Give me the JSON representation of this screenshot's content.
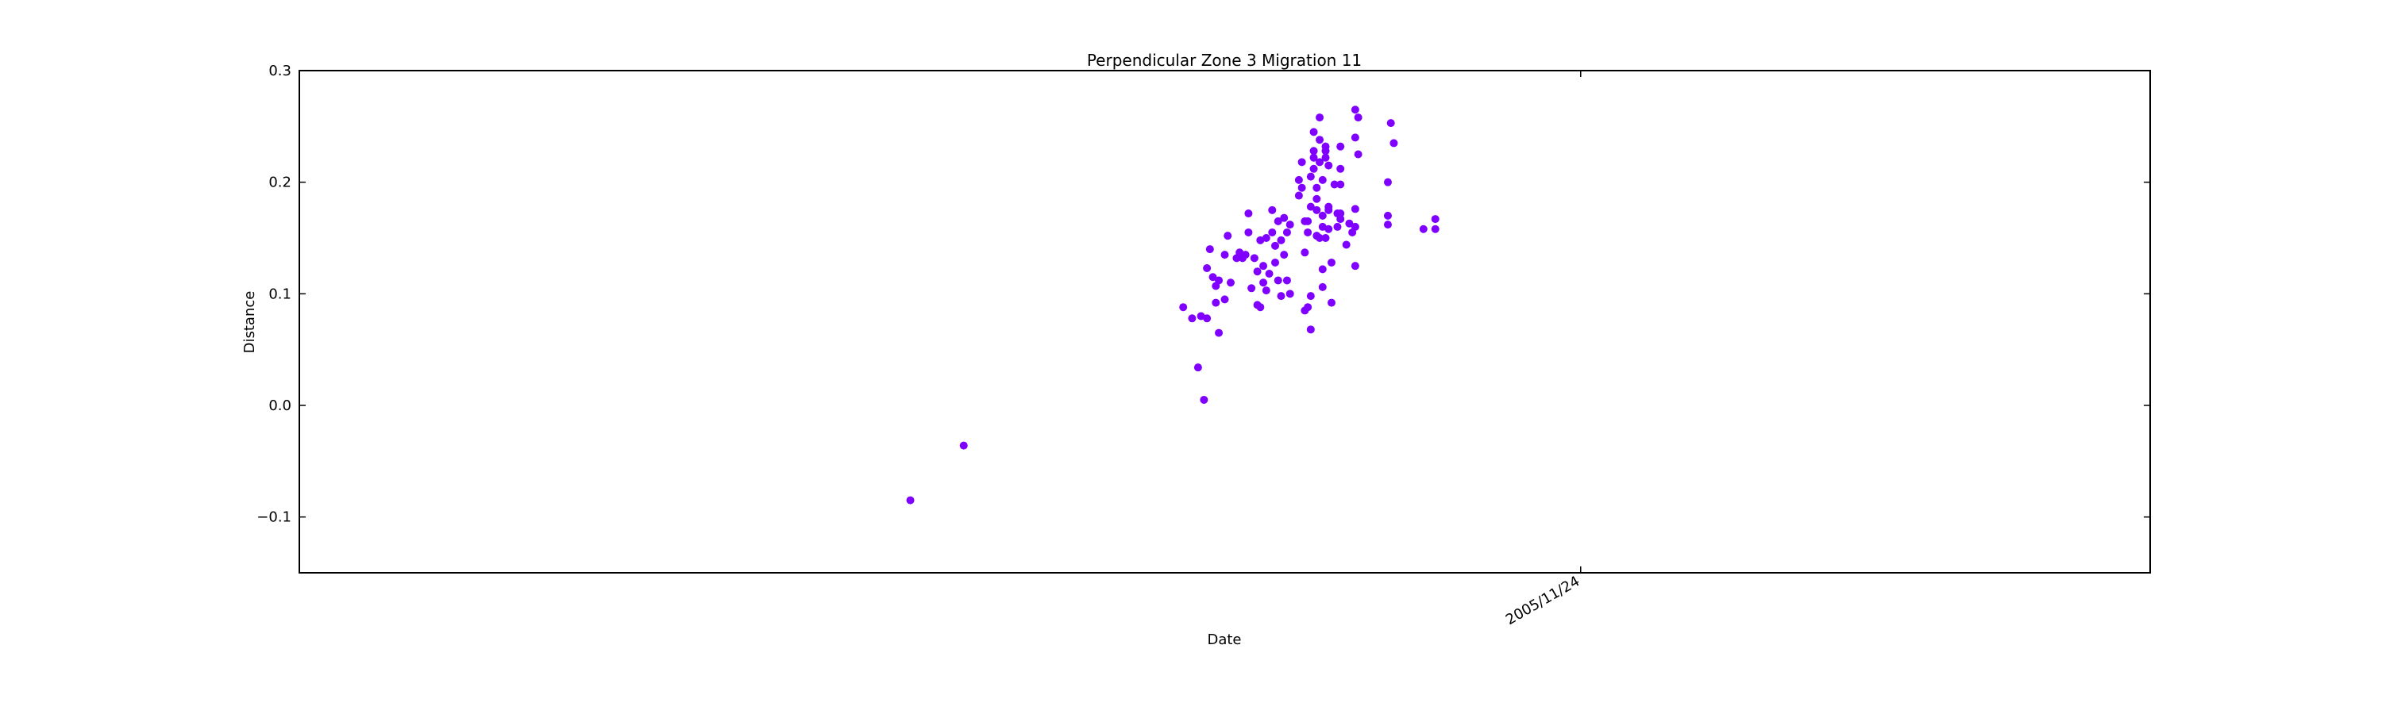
{
  "chart_data": {
    "type": "scatter",
    "title": "Perpendicular Zone 3 Migration 11",
    "xlabel": "Date",
    "ylabel": "Distance",
    "ylim": [
      -0.15,
      0.3
    ],
    "xlim": [
      "2005-11-06",
      "2005-12-02"
    ],
    "x_ticks": [
      {
        "date": "2005-11-24",
        "label": "2005/11/24"
      }
    ],
    "y_ticks": [
      {
        "value": -0.1,
        "label": "−0.1"
      },
      {
        "value": 0.0,
        "label": "0.0"
      },
      {
        "value": 0.1,
        "label": "0.1"
      },
      {
        "value": 0.2,
        "label": "0.2"
      },
      {
        "value": 0.3,
        "label": "0.3"
      }
    ],
    "grid": false,
    "marker_color": "#7f00ff",
    "series": [
      {
        "points": [
          [
            "2005-11-14T14:00",
            -0.085
          ],
          [
            "2005-11-15T08:00",
            -0.036
          ],
          [
            "2005-11-18T10:00",
            0.088
          ],
          [
            "2005-11-18T13:00",
            0.078
          ],
          [
            "2005-11-18T15:00",
            0.034
          ],
          [
            "2005-11-18T16:00",
            0.08
          ],
          [
            "2005-11-18T17:00",
            0.005
          ],
          [
            "2005-11-18T18:00",
            0.123
          ],
          [
            "2005-11-18T18:00",
            0.078
          ],
          [
            "2005-11-18T19:00",
            0.14
          ],
          [
            "2005-11-18T20:00",
            0.115
          ],
          [
            "2005-11-18T21:00",
            0.092
          ],
          [
            "2005-11-18T21:00",
            0.107
          ],
          [
            "2005-11-18T22:00",
            0.065
          ],
          [
            "2005-11-18T22:00",
            0.112
          ],
          [
            "2005-11-19T00:00",
            0.095
          ],
          [
            "2005-11-19T00:00",
            0.135
          ],
          [
            "2005-11-19T01:00",
            0.152
          ],
          [
            "2005-11-19T02:00",
            0.11
          ],
          [
            "2005-11-19T04:00",
            0.132
          ],
          [
            "2005-11-19T05:00",
            0.137
          ],
          [
            "2005-11-19T06:00",
            0.132
          ],
          [
            "2005-11-19T07:00",
            0.135
          ],
          [
            "2005-11-19T08:00",
            0.172
          ],
          [
            "2005-11-19T08:00",
            0.155
          ],
          [
            "2005-11-19T09:00",
            0.105
          ],
          [
            "2005-11-19T10:00",
            0.132
          ],
          [
            "2005-11-19T11:00",
            0.09
          ],
          [
            "2005-11-19T11:00",
            0.12
          ],
          [
            "2005-11-19T12:00",
            0.148
          ],
          [
            "2005-11-19T12:00",
            0.088
          ],
          [
            "2005-11-19T13:00",
            0.125
          ],
          [
            "2005-11-19T13:00",
            0.11
          ],
          [
            "2005-11-19T14:00",
            0.15
          ],
          [
            "2005-11-19T14:00",
            0.103
          ],
          [
            "2005-11-19T15:00",
            0.118
          ],
          [
            "2005-11-19T16:00",
            0.155
          ],
          [
            "2005-11-19T16:00",
            0.175
          ],
          [
            "2005-11-19T17:00",
            0.143
          ],
          [
            "2005-11-19T17:00",
            0.128
          ],
          [
            "2005-11-19T18:00",
            0.165
          ],
          [
            "2005-11-19T18:00",
            0.112
          ],
          [
            "2005-11-19T19:00",
            0.148
          ],
          [
            "2005-11-19T19:00",
            0.098
          ],
          [
            "2005-11-19T20:00",
            0.168
          ],
          [
            "2005-11-19T20:00",
            0.135
          ],
          [
            "2005-11-19T21:00",
            0.155
          ],
          [
            "2005-11-19T21:00",
            0.112
          ],
          [
            "2005-11-19T22:00",
            0.162
          ],
          [
            "2005-11-19T22:00",
            0.1
          ],
          [
            "2005-11-20T01:00",
            0.202
          ],
          [
            "2005-11-20T01:00",
            0.188
          ],
          [
            "2005-11-20T02:00",
            0.218
          ],
          [
            "2005-11-20T02:00",
            0.195
          ],
          [
            "2005-11-20T03:00",
            0.165
          ],
          [
            "2005-11-20T03:00",
            0.137
          ],
          [
            "2005-11-20T03:00",
            0.085
          ],
          [
            "2005-11-20T04:00",
            0.155
          ],
          [
            "2005-11-20T04:00",
            0.088
          ],
          [
            "2005-11-20T04:00",
            0.165
          ],
          [
            "2005-11-20T05:00",
            0.205
          ],
          [
            "2005-11-20T05:00",
            0.178
          ],
          [
            "2005-11-20T05:00",
            0.098
          ],
          [
            "2005-11-20T05:00",
            0.068
          ],
          [
            "2005-11-20T06:00",
            0.245
          ],
          [
            "2005-11-20T06:00",
            0.228
          ],
          [
            "2005-11-20T06:00",
            0.222
          ],
          [
            "2005-11-20T06:00",
            0.212
          ],
          [
            "2005-11-20T07:00",
            0.195
          ],
          [
            "2005-11-20T07:00",
            0.185
          ],
          [
            "2005-11-20T07:00",
            0.175
          ],
          [
            "2005-11-20T07:00",
            0.152
          ],
          [
            "2005-11-20T08:00",
            0.238
          ],
          [
            "2005-11-20T08:00",
            0.258
          ],
          [
            "2005-11-20T08:00",
            0.218
          ],
          [
            "2005-11-20T08:00",
            0.15
          ],
          [
            "2005-11-20T09:00",
            0.202
          ],
          [
            "2005-11-20T09:00",
            0.17
          ],
          [
            "2005-11-20T09:00",
            0.16
          ],
          [
            "2005-11-20T09:00",
            0.122
          ],
          [
            "2005-11-20T09:00",
            0.106
          ],
          [
            "2005-11-20T10:00",
            0.232
          ],
          [
            "2005-11-20T10:00",
            0.228
          ],
          [
            "2005-11-20T10:00",
            0.222
          ],
          [
            "2005-11-20T10:00",
            0.15
          ],
          [
            "2005-11-20T11:00",
            0.215
          ],
          [
            "2005-11-20T11:00",
            0.178
          ],
          [
            "2005-11-20T11:00",
            0.175
          ],
          [
            "2005-11-20T11:00",
            0.158
          ],
          [
            "2005-11-20T12:00",
            0.128
          ],
          [
            "2005-11-20T12:00",
            0.092
          ],
          [
            "2005-11-20T13:00",
            0.198
          ],
          [
            "2005-11-20T14:00",
            0.172
          ],
          [
            "2005-11-20T14:00",
            0.16
          ],
          [
            "2005-11-20T15:00",
            0.232
          ],
          [
            "2005-11-20T15:00",
            0.212
          ],
          [
            "2005-11-20T15:00",
            0.198
          ],
          [
            "2005-11-20T15:00",
            0.172
          ],
          [
            "2005-11-20T15:00",
            0.167
          ],
          [
            "2005-11-20T17:00",
            0.144
          ],
          [
            "2005-11-20T18:00",
            0.163
          ],
          [
            "2005-11-20T19:00",
            0.155
          ],
          [
            "2005-11-20T20:00",
            0.265
          ],
          [
            "2005-11-20T20:00",
            0.24
          ],
          [
            "2005-11-20T20:00",
            0.176
          ],
          [
            "2005-11-20T20:00",
            0.16
          ],
          [
            "2005-11-20T20:00",
            0.125
          ],
          [
            "2005-11-20T21:00",
            0.258
          ],
          [
            "2005-11-20T21:00",
            0.225
          ],
          [
            "2005-11-21T07:00",
            0.2
          ],
          [
            "2005-11-21T07:00",
            0.17
          ],
          [
            "2005-11-21T07:00",
            0.162
          ],
          [
            "2005-11-21T08:00",
            0.253
          ],
          [
            "2005-11-21T09:00",
            0.235
          ],
          [
            "2005-11-21T19:00",
            0.158
          ],
          [
            "2005-11-21T23:00",
            0.167
          ],
          [
            "2005-11-21T23:00",
            0.158
          ]
        ]
      }
    ]
  }
}
